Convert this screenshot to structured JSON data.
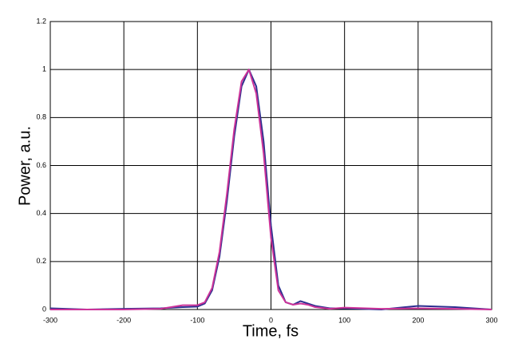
{
  "chart_data": {
    "type": "line",
    "x_label": "Time, fs",
    "y_label": "Power, a.u.",
    "x": [
      -300,
      -250,
      -200,
      -150,
      -120,
      -100,
      -90,
      -80,
      -70,
      -60,
      -50,
      -40,
      -30,
      -20,
      -10,
      0,
      10,
      20,
      30,
      40,
      50,
      60,
      80,
      100,
      150,
      200,
      250,
      300
    ],
    "series": [
      {
        "color": "#2b2f8f",
        "values": [
          0.005,
          0,
          0.003,
          0.005,
          0.01,
          0.012,
          0.025,
          0.08,
          0.22,
          0.45,
          0.72,
          0.93,
          1.0,
          0.93,
          0.7,
          0.35,
          0.1,
          0.03,
          0.02,
          0.035,
          0.025,
          0.015,
          0.005,
          0.005,
          0,
          0.015,
          0.01,
          0
        ]
      },
      {
        "color": "#cc3399",
        "values": [
          0,
          0,
          0,
          0.003,
          0.018,
          0.018,
          0.03,
          0.09,
          0.24,
          0.48,
          0.75,
          0.95,
          1.0,
          0.9,
          0.65,
          0.3,
          0.08,
          0.03,
          0.02,
          0.025,
          0.02,
          0.01,
          0.003,
          0.008,
          0.003,
          0.005,
          0.003,
          0
        ]
      }
    ],
    "xlim": [
      -300,
      300
    ],
    "xticks": [
      -300,
      -200,
      -100,
      0,
      100,
      200,
      300
    ],
    "ylim": [
      0,
      1.2
    ],
    "yticks": [
      0,
      0.2,
      0.4,
      0.6,
      0.8,
      1,
      1.2
    ],
    "grid": true
  }
}
